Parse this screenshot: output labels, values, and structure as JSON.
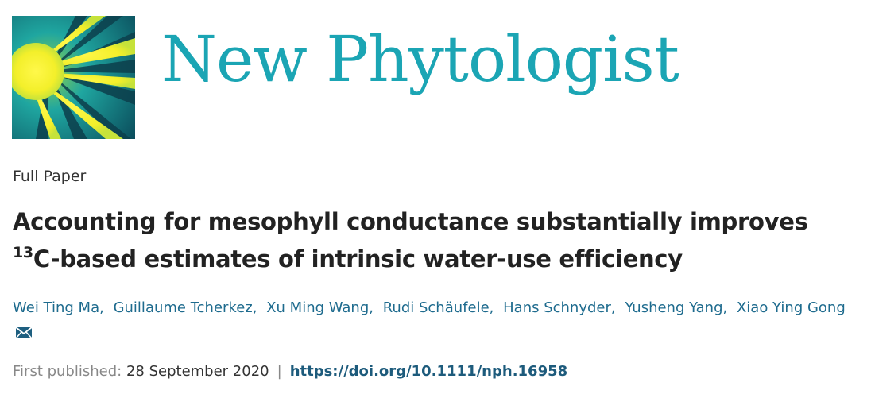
{
  "header": {
    "journal": "New Phytologist"
  },
  "article": {
    "type": "Full Paper",
    "title": {
      "main": "Accounting for mesophyll conductance substantially improves",
      "superscript": "13",
      "rest": "C-based estimates of intrinsic water-use efficiency"
    },
    "authors": [
      "Wei Ting Ma",
      "Guillaume Tcherkez",
      "Xu Ming Wang",
      "Rudi Schäufele",
      "Hans Schnyder",
      "Yusheng Yang",
      "Xiao Ying Gong"
    ],
    "author_separator": ",",
    "published": {
      "label": "First published:",
      "date": "28 September 2020",
      "separator": "|",
      "doi": "https://doi.org/10.1111/nph.16958"
    }
  }
}
